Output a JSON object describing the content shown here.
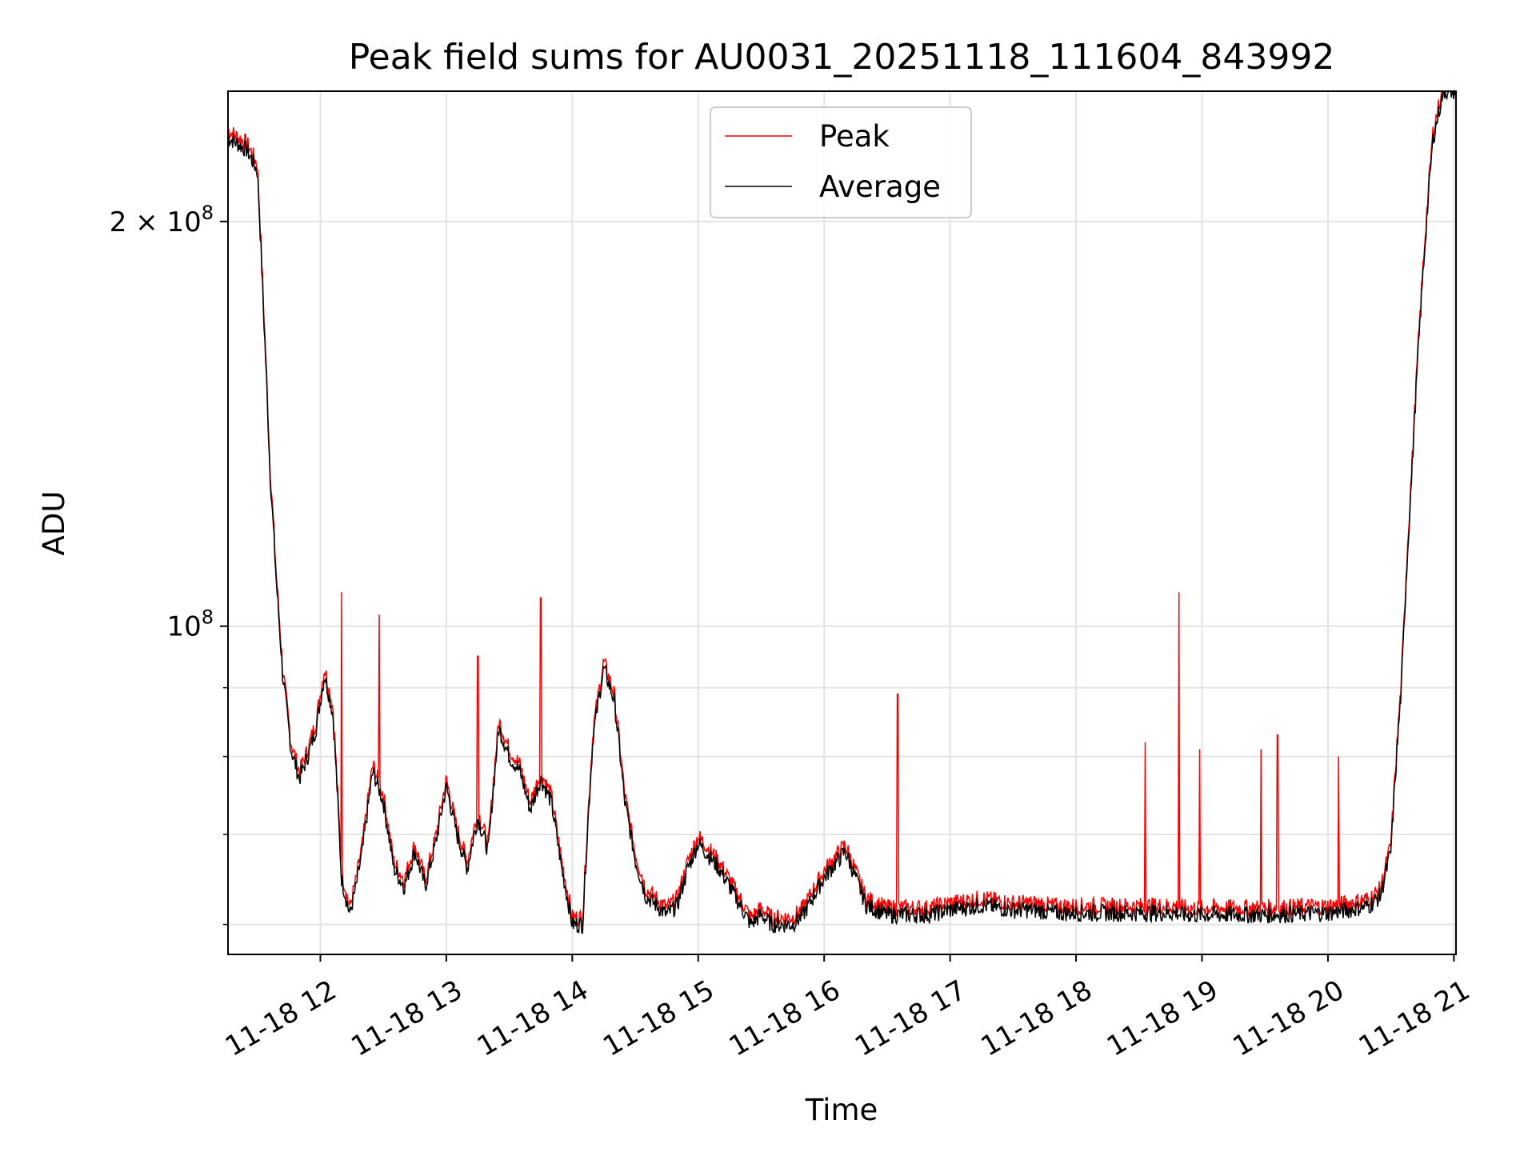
{
  "chart_data": {
    "type": "line",
    "title": "Peak field sums for AU0031_20251118_111604_843992",
    "xlabel": "Time",
    "ylabel": "ADU",
    "x_scale": "time",
    "y_scale": "log",
    "xlim": [
      "2025-11-18T11:16",
      "2025-11-18T21:01"
    ],
    "ylim": [
      57000000,
      250000000
    ],
    "x_ticks": [
      {
        "value": "2025-11-18T12:00",
        "label": "11-18 12"
      },
      {
        "value": "2025-11-18T13:00",
        "label": "11-18 13"
      },
      {
        "value": "2025-11-18T14:00",
        "label": "11-18 14"
      },
      {
        "value": "2025-11-18T15:00",
        "label": "11-18 15"
      },
      {
        "value": "2025-11-18T16:00",
        "label": "11-18 16"
      },
      {
        "value": "2025-11-18T17:00",
        "label": "11-18 17"
      },
      {
        "value": "2025-11-18T18:00",
        "label": "11-18 18"
      },
      {
        "value": "2025-11-18T19:00",
        "label": "11-18 19"
      },
      {
        "value": "2025-11-18T20:00",
        "label": "11-18 20"
      },
      {
        "value": "2025-11-18T21:00",
        "label": "11-18 21"
      }
    ],
    "y_major_ticks": [
      {
        "value": 100000000,
        "base": "10",
        "exp": "8",
        "coef": ""
      },
      {
        "value": 200000000,
        "base": "10",
        "exp": "8",
        "coef": "2 × "
      }
    ],
    "y_minor_ticks": [
      60000000,
      70000000,
      80000000,
      90000000
    ],
    "grid": true,
    "legend": {
      "position": "top-center",
      "entries": [
        {
          "name": "Peak",
          "color": "#ff0000"
        },
        {
          "name": "Average",
          "color": "#000000"
        }
      ]
    },
    "series": [
      {
        "name": "Average",
        "color": "#000000",
        "x": [
          "2025-11-18T11:16",
          "2025-11-18T11:25",
          "2025-11-18T11:30",
          "2025-11-18T11:33",
          "2025-11-18T11:36",
          "2025-11-18T11:39",
          "2025-11-18T11:42",
          "2025-11-18T11:46",
          "2025-11-18T11:50",
          "2025-11-18T11:54",
          "2025-11-18T11:58",
          "2025-11-18T12:02",
          "2025-11-18T12:06",
          "2025-11-18T12:10",
          "2025-11-18T12:14",
          "2025-11-18T12:17",
          "2025-11-18T12:20",
          "2025-11-18T12:25",
          "2025-11-18T12:30",
          "2025-11-18T12:35",
          "2025-11-18T12:40",
          "2025-11-18T12:45",
          "2025-11-18T12:50",
          "2025-11-18T12:55",
          "2025-11-18T13:00",
          "2025-11-18T13:05",
          "2025-11-18T13:10",
          "2025-11-18T13:15",
          "2025-11-18T13:20",
          "2025-11-18T13:25",
          "2025-11-18T13:30",
          "2025-11-18T13:35",
          "2025-11-18T13:40",
          "2025-11-18T13:45",
          "2025-11-18T13:50",
          "2025-11-18T13:55",
          "2025-11-18T14:00",
          "2025-11-18T14:05",
          "2025-11-18T14:10",
          "2025-11-18T14:15",
          "2025-11-18T14:20",
          "2025-11-18T14:25",
          "2025-11-18T14:30",
          "2025-11-18T14:35",
          "2025-11-18T14:40",
          "2025-11-18T14:45",
          "2025-11-18T14:50",
          "2025-11-18T14:55",
          "2025-11-18T15:00",
          "2025-11-18T15:10",
          "2025-11-18T15:20",
          "2025-11-18T15:25",
          "2025-11-18T15:30",
          "2025-11-18T15:35",
          "2025-11-18T15:40",
          "2025-11-18T15:45",
          "2025-11-18T15:50",
          "2025-11-18T15:55",
          "2025-11-18T16:00",
          "2025-11-18T16:10",
          "2025-11-18T16:20",
          "2025-11-18T16:30",
          "2025-11-18T16:40",
          "2025-11-18T16:50",
          "2025-11-18T17:00",
          "2025-11-18T17:15",
          "2025-11-18T17:30",
          "2025-11-18T17:40",
          "2025-11-18T17:50",
          "2025-11-18T18:00",
          "2025-11-18T18:30",
          "2025-11-18T18:48",
          "2025-11-18T18:50",
          "2025-11-18T19:30",
          "2025-11-18T20:00",
          "2025-11-18T20:10",
          "2025-11-18T20:20",
          "2025-11-18T20:25",
          "2025-11-18T20:30",
          "2025-11-18T20:35",
          "2025-11-18T20:40",
          "2025-11-18T20:45",
          "2025-11-18T20:50",
          "2025-11-18T20:55",
          "2025-11-18T21:01"
        ],
        "values": [
          231000000,
          226000000,
          218000000,
          170000000,
          130000000,
          108000000,
          92000000,
          81000000,
          77000000,
          80000000,
          84000000,
          92000000,
          86000000,
          65000000,
          61000000,
          64000000,
          68000000,
          78000000,
          74000000,
          66000000,
          64000000,
          68000000,
          64000000,
          69000000,
          76000000,
          70000000,
          66000000,
          72000000,
          68000000,
          84000000,
          80000000,
          78000000,
          73000000,
          77000000,
          74000000,
          66000000,
          60000000,
          60000000,
          83000000,
          93000000,
          88000000,
          74000000,
          67000000,
          63000000,
          62000000,
          61000000,
          62000000,
          66000000,
          69000000,
          66000000,
          62000000,
          60000000,
          61000000,
          60000000,
          60000000,
          60000000,
          61000000,
          63000000,
          65000000,
          68000000,
          62000000,
          61000000,
          61000000,
          61000000,
          61500000,
          62000000,
          61500000,
          61500000,
          61200000,
          61200000,
          61200000,
          61200000,
          61000000,
          61000000,
          61200000,
          61500000,
          62000000,
          63000000,
          68000000,
          90000000,
          130000000,
          180000000,
          230000000,
          250000000,
          250000000
        ]
      },
      {
        "name": "Peak",
        "color": "#ff0000",
        "spikes": [
          {
            "x": "2025-11-18T12:10",
            "value": 106000000
          },
          {
            "x": "2025-11-18T12:28",
            "value": 102000000
          },
          {
            "x": "2025-11-18T13:15",
            "value": 95000000
          },
          {
            "x": "2025-11-18T13:45",
            "value": 105000000
          },
          {
            "x": "2025-11-18T14:15",
            "value": 93000000
          },
          {
            "x": "2025-11-18T16:35",
            "value": 89000000
          },
          {
            "x": "2025-11-18T18:33",
            "value": 82000000
          },
          {
            "x": "2025-11-18T18:49",
            "value": 106000000
          },
          {
            "x": "2025-11-18T18:59",
            "value": 81000000
          },
          {
            "x": "2025-11-18T19:28",
            "value": 81000000
          },
          {
            "x": "2025-11-18T19:36",
            "value": 83000000
          },
          {
            "x": "2025-11-18T20:05",
            "value": 80000000
          }
        ]
      }
    ]
  }
}
